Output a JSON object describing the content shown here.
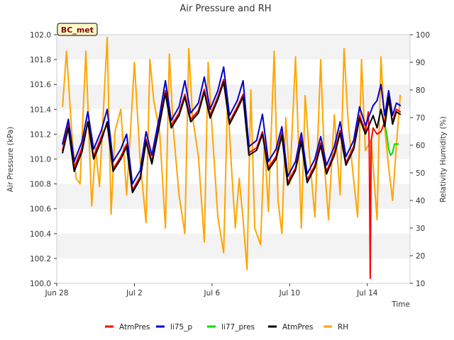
{
  "chart_data": {
    "type": "line",
    "title": "Air Pressure and RH",
    "site_label": "BC_met",
    "xlabel": "Time",
    "ylabel": "Air Pressure (kPa)",
    "y2label": "Relativity Humidity (%)",
    "xlim": [
      0,
      18.2
    ],
    "ylim": [
      100.0,
      102.0
    ],
    "y2lim": [
      10,
      100
    ],
    "x_ticks": [
      {
        "value": 0,
        "label": "Jun 28"
      },
      {
        "value": 4,
        "label": "Jul 2"
      },
      {
        "value": 8,
        "label": "Jul 6"
      },
      {
        "value": 12,
        "label": "Jul 10"
      },
      {
        "value": 16,
        "label": "Jul 14"
      }
    ],
    "y_ticks": [
      "100.0",
      "100.2",
      "100.4",
      "100.6",
      "100.8",
      "101.0",
      "101.2",
      "101.4",
      "101.6",
      "101.8",
      "102.0"
    ],
    "y2_ticks": [
      "10",
      "20",
      "30",
      "40",
      "50",
      "60",
      "70",
      "80",
      "90",
      "100"
    ],
    "grid": "horizontal bands",
    "legend_position": "bottom",
    "series": [
      {
        "name": "AtmPres",
        "color": "#ff0000",
        "axis": "left",
        "x": [
          0.3,
          0.6,
          0.9,
          1.3,
          1.6,
          1.9,
          2.3,
          2.6,
          2.9,
          3.3,
          3.6,
          3.9,
          4.3,
          4.6,
          4.9,
          5.3,
          5.6,
          5.9,
          6.3,
          6.6,
          6.9,
          7.3,
          7.6,
          7.9,
          8.3,
          8.6,
          8.9,
          9.3,
          9.6,
          9.9,
          10.3,
          10.6,
          10.9,
          11.3,
          11.6,
          11.9,
          12.3,
          12.6,
          12.9,
          13.3,
          13.6,
          13.9,
          14.3,
          14.6,
          14.9,
          15.3,
          15.6,
          15.9,
          16.05,
          16.1,
          16.15,
          16.2,
          16.3,
          16.5,
          16.7,
          16.9,
          17.1,
          17.3,
          17.5,
          17.7
        ],
        "values": [
          101.07,
          101.28,
          100.93,
          101.09,
          101.3,
          101.02,
          101.18,
          101.28,
          100.92,
          101.02,
          101.12,
          100.75,
          100.86,
          101.16,
          100.98,
          101.3,
          101.55,
          101.27,
          101.37,
          101.52,
          101.32,
          101.39,
          101.56,
          101.35,
          101.5,
          101.64,
          101.3,
          101.42,
          101.52,
          101.05,
          101.09,
          101.22,
          100.93,
          101.02,
          101.21,
          100.81,
          100.93,
          101.16,
          100.83,
          100.95,
          101.13,
          100.9,
          101.05,
          101.23,
          100.97,
          101.1,
          101.35,
          101.22,
          101.38,
          101.1,
          100.04,
          101.15,
          101.25,
          101.2,
          101.22,
          101.3,
          101.47,
          101.3,
          101.4,
          101.38
        ]
      },
      {
        "name": "li75_p",
        "color": "#0000cc",
        "axis": "left",
        "x": [
          0.3,
          0.6,
          0.9,
          1.3,
          1.6,
          1.9,
          2.3,
          2.6,
          2.9,
          3.3,
          3.6,
          3.9,
          4.3,
          4.6,
          4.9,
          5.3,
          5.6,
          5.9,
          6.3,
          6.6,
          6.9,
          7.3,
          7.6,
          7.9,
          8.3,
          8.6,
          8.9,
          9.3,
          9.6,
          9.9,
          10.3,
          10.6,
          10.9,
          11.3,
          11.6,
          11.9,
          12.3,
          12.6,
          12.9,
          13.3,
          13.6,
          13.9,
          14.3,
          14.6,
          14.9,
          15.3,
          15.6,
          15.9,
          16.3,
          16.5,
          16.7,
          16.9,
          17.1,
          17.3,
          17.5,
          17.7
        ],
        "values": [
          101.12,
          101.32,
          100.98,
          101.14,
          101.38,
          101.08,
          101.23,
          101.4,
          100.98,
          101.08,
          101.2,
          100.8,
          100.91,
          101.22,
          101.03,
          101.35,
          101.63,
          101.31,
          101.42,
          101.63,
          101.37,
          101.45,
          101.66,
          101.4,
          101.55,
          101.74,
          101.35,
          101.47,
          101.63,
          101.1,
          101.15,
          101.36,
          100.98,
          101.08,
          101.26,
          100.86,
          100.98,
          101.21,
          100.88,
          101.0,
          101.18,
          100.95,
          101.1,
          101.3,
          101.02,
          101.15,
          101.42,
          101.27,
          101.43,
          101.47,
          101.6,
          101.35,
          101.55,
          101.35,
          101.45,
          101.43
        ]
      },
      {
        "name": "li77_pres",
        "color": "#00dd00",
        "axis": "left",
        "x": [
          16.9,
          17.0,
          17.1,
          17.2,
          17.3,
          17.4,
          17.5,
          17.6
        ],
        "values": [
          101.28,
          101.2,
          101.08,
          101.03,
          101.05,
          101.12,
          101.12,
          101.12
        ]
      },
      {
        "name": "AtmPres",
        "color": "#000000",
        "axis": "left",
        "x": [
          0.3,
          0.6,
          0.9,
          1.3,
          1.6,
          1.9,
          2.3,
          2.6,
          2.9,
          3.3,
          3.6,
          3.9,
          4.3,
          4.6,
          4.9,
          5.3,
          5.6,
          5.9,
          6.3,
          6.6,
          6.9,
          7.3,
          7.6,
          7.9,
          8.3,
          8.6,
          8.9,
          9.3,
          9.6,
          9.9,
          10.3,
          10.6,
          10.9,
          11.3,
          11.6,
          11.9,
          12.3,
          12.6,
          12.9,
          13.3,
          13.6,
          13.9,
          14.3,
          14.6,
          14.9,
          15.3,
          15.6,
          15.9,
          16.3,
          16.5,
          16.7,
          16.9,
          17.1,
          17.3,
          17.5,
          17.7
        ],
        "values": [
          101.05,
          101.25,
          100.9,
          101.06,
          101.3,
          101.0,
          101.15,
          101.3,
          100.9,
          101.0,
          101.1,
          100.73,
          100.84,
          101.14,
          100.96,
          101.28,
          101.53,
          101.25,
          101.35,
          101.5,
          101.3,
          101.37,
          101.54,
          101.33,
          101.48,
          101.62,
          101.28,
          101.4,
          101.5,
          101.03,
          101.07,
          101.2,
          100.91,
          101.0,
          101.19,
          100.79,
          100.91,
          101.14,
          100.81,
          100.93,
          101.11,
          100.88,
          101.03,
          101.21,
          100.95,
          101.08,
          101.33,
          101.2,
          101.35,
          101.25,
          101.4,
          101.26,
          101.5,
          101.28,
          101.38,
          101.36
        ]
      },
      {
        "name": "RH",
        "color": "#ffa500",
        "axis": "right",
        "x": [
          0.3,
          0.5,
          0.8,
          1.0,
          1.2,
          1.5,
          1.8,
          2.0,
          2.2,
          2.6,
          2.8,
          3.0,
          3.3,
          3.6,
          3.8,
          4.0,
          4.3,
          4.6,
          4.8,
          5.0,
          5.3,
          5.6,
          5.8,
          6.0,
          6.3,
          6.6,
          6.8,
          7.0,
          7.3,
          7.6,
          7.8,
          8.0,
          8.3,
          8.6,
          8.8,
          9.0,
          9.2,
          9.4,
          9.6,
          9.8,
          10.0,
          10.2,
          10.5,
          10.7,
          10.9,
          11.2,
          11.4,
          11.6,
          11.8,
          12.0,
          12.3,
          12.6,
          12.8,
          13.0,
          13.3,
          13.6,
          13.8,
          14.0,
          14.3,
          14.6,
          14.8,
          15.0,
          15.2,
          15.5,
          15.7,
          15.9,
          16.2,
          16.5,
          16.7,
          16.9,
          17.1,
          17.3,
          17.5,
          17.7
        ],
        "values": [
          74,
          94,
          62,
          48,
          46,
          94,
          38,
          59,
          45,
          99,
          35,
          65,
          73,
          42,
          65,
          90,
          54,
          32,
          91,
          76,
          65,
          30,
          93,
          66,
          42,
          28,
          95,
          70,
          56,
          25,
          90,
          66,
          34,
          21,
          77,
          52,
          30,
          48,
          33,
          15,
          80,
          30,
          24,
          62,
          36,
          94,
          40,
          28,
          70,
          46,
          92,
          30,
          78,
          58,
          34,
          91,
          52,
          33,
          71,
          42,
          95,
          70,
          54,
          34,
          91,
          58,
          62,
          33,
          92,
          66,
          52,
          40,
          60,
          78
        ]
      }
    ]
  }
}
